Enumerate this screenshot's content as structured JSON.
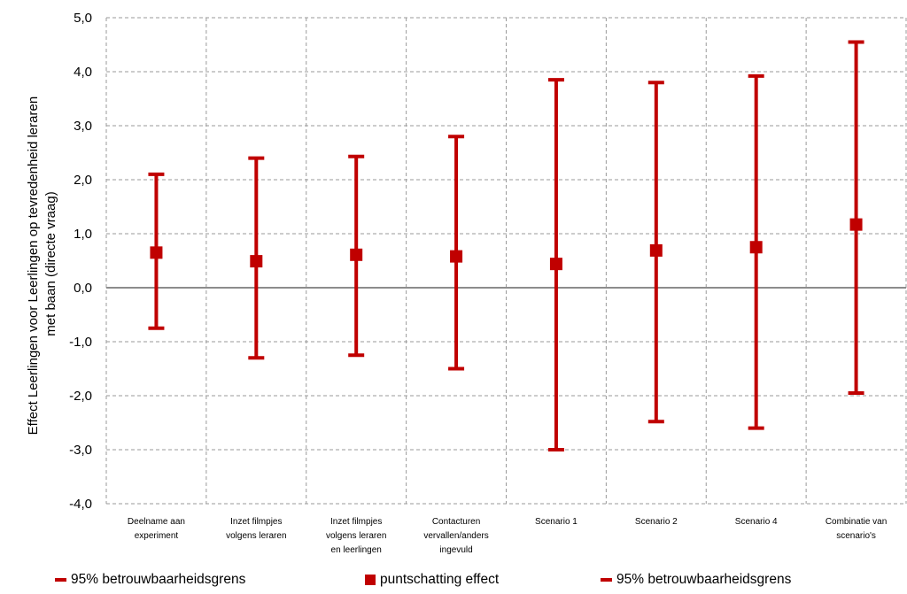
{
  "chart_data": {
    "type": "errorbar",
    "ylabel_lines": [
      "Effect Leerlingen voor Leerlingen op tevredenheid leraren",
      "met baan (directe vraag)"
    ],
    "ylim": [
      -4.0,
      5.0
    ],
    "yticks": [
      "5,0",
      "4,0",
      "3,0",
      "2,0",
      "1,0",
      "0,0",
      "-1,0",
      "-2,0",
      "-3,0",
      "-4,0"
    ],
    "ytick_values": [
      5,
      4,
      3,
      2,
      1,
      0,
      -1,
      -2,
      -3,
      -4
    ],
    "grid": true,
    "categories": [
      [
        "Deelname aan",
        "experiment"
      ],
      [
        "Inzet filmpjes",
        "volgens leraren"
      ],
      [
        "Inzet filmpjes",
        "volgens leraren",
        "en leerlingen"
      ],
      [
        "Contacturen",
        "vervallen/anders",
        "ingevuld"
      ],
      [
        "Scenario 1"
      ],
      [
        "Scenario 2"
      ],
      [
        "Scenario 4"
      ],
      [
        "Combinatie van",
        "scenario's"
      ]
    ],
    "series": [
      {
        "name": "95% betrouwbaarheidsgrens",
        "role": "upper",
        "values": [
          2.1,
          2.4,
          2.43,
          2.8,
          3.85,
          3.8,
          3.92,
          4.55
        ]
      },
      {
        "name": "puntschatting effect",
        "role": "point",
        "values": [
          0.65,
          0.49,
          0.61,
          0.58,
          0.44,
          0.69,
          0.75,
          1.17
        ]
      },
      {
        "name": "95% betrouwbaarheidsgrens",
        "role": "lower",
        "values": [
          -0.75,
          -1.3,
          -1.25,
          -1.5,
          -3.0,
          -2.48,
          -2.6,
          -1.95
        ]
      }
    ],
    "colors": {
      "series": "#c00000",
      "grid": "#9a9a9a",
      "zero_line": "#8c8c8c"
    },
    "legend": {
      "position": "bottom",
      "items": [
        {
          "label": "95% betrouwbaarheidsgrens",
          "marker": "line"
        },
        {
          "label": "puntschatting effect",
          "marker": "square"
        },
        {
          "label": "95% betrouwbaarheidsgrens",
          "marker": "line"
        }
      ]
    }
  }
}
